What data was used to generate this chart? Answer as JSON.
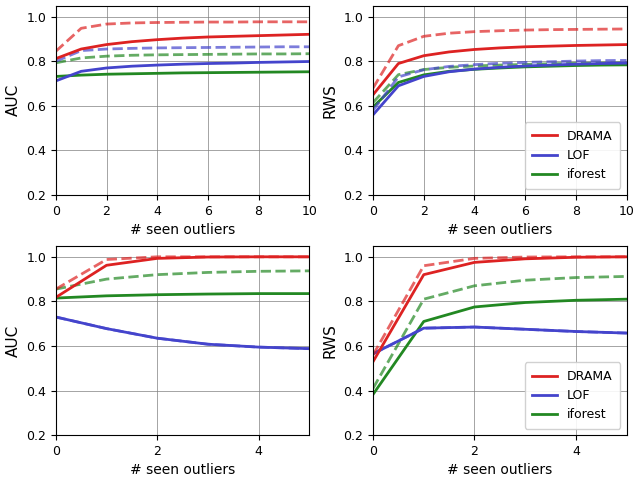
{
  "colors": {
    "drama": "#dd2222",
    "lof": "#4444cc",
    "iforest": "#228822"
  },
  "top_left": {
    "ylabel": "AUC",
    "xlabel": "# seen outliers",
    "xlim": [
      0,
      10
    ],
    "ylim": [
      0.2,
      1.05
    ],
    "yticks": [
      0.2,
      0.4,
      0.6,
      0.8,
      1.0
    ],
    "xticks": [
      0,
      2,
      4,
      6,
      8,
      10
    ],
    "drama_solid": [
      0.812,
      0.855,
      0.875,
      0.888,
      0.897,
      0.904,
      0.909,
      0.912,
      0.915,
      0.918,
      0.921
    ],
    "drama_dashed": [
      0.845,
      0.948,
      0.967,
      0.972,
      0.974,
      0.975,
      0.976,
      0.976,
      0.977,
      0.977,
      0.977
    ],
    "lof_solid": [
      0.712,
      0.755,
      0.77,
      0.778,
      0.783,
      0.787,
      0.79,
      0.792,
      0.795,
      0.797,
      0.799
    ],
    "lof_dashed": [
      0.8,
      0.848,
      0.855,
      0.858,
      0.86,
      0.861,
      0.862,
      0.863,
      0.864,
      0.865,
      0.865
    ],
    "iforest_solid": [
      0.732,
      0.738,
      0.742,
      0.744,
      0.746,
      0.748,
      0.749,
      0.75,
      0.751,
      0.752,
      0.753
    ],
    "iforest_dashed": [
      0.793,
      0.815,
      0.823,
      0.827,
      0.829,
      0.83,
      0.831,
      0.832,
      0.833,
      0.833,
      0.834
    ]
  },
  "top_right": {
    "ylabel": "RWS",
    "xlabel": "# seen outliers",
    "xlim": [
      0,
      10
    ],
    "ylim": [
      0.2,
      1.05
    ],
    "yticks": [
      0.2,
      0.4,
      0.6,
      0.8,
      1.0
    ],
    "xticks": [
      0,
      2,
      4,
      6,
      8,
      10
    ],
    "drama_solid": [
      0.65,
      0.79,
      0.825,
      0.842,
      0.853,
      0.86,
      0.865,
      0.868,
      0.871,
      0.873,
      0.875
    ],
    "drama_dashed": [
      0.68,
      0.87,
      0.912,
      0.926,
      0.933,
      0.937,
      0.94,
      0.942,
      0.943,
      0.944,
      0.945
    ],
    "lof_solid": [
      0.56,
      0.69,
      0.732,
      0.753,
      0.765,
      0.773,
      0.779,
      0.783,
      0.787,
      0.79,
      0.792
    ],
    "lof_dashed": [
      0.58,
      0.73,
      0.762,
      0.777,
      0.785,
      0.791,
      0.795,
      0.798,
      0.801,
      0.803,
      0.804
    ],
    "iforest_solid": [
      0.595,
      0.705,
      0.739,
      0.755,
      0.764,
      0.77,
      0.775,
      0.778,
      0.781,
      0.783,
      0.784
    ],
    "iforest_dashed": [
      0.615,
      0.74,
      0.763,
      0.773,
      0.779,
      0.783,
      0.786,
      0.789,
      0.791,
      0.792,
      0.793
    ]
  },
  "bottom_left": {
    "ylabel": "AUC",
    "xlabel": "# seen outliers",
    "xlim": [
      0,
      5
    ],
    "ylim": [
      0.2,
      1.05
    ],
    "yticks": [
      0.2,
      0.4,
      0.6,
      0.8,
      1.0
    ],
    "xticks": [
      0,
      2,
      4
    ],
    "drama_solid": [
      0.818,
      0.962,
      0.993,
      0.999,
      1.0,
      1.0
    ],
    "drama_dashed": [
      0.855,
      0.988,
      1.0,
      1.0,
      1.0,
      1.0
    ],
    "lof_solid": [
      0.73,
      0.678,
      0.635,
      0.608,
      0.595,
      0.588
    ],
    "lof_dashed": [
      0.73,
      0.678,
      0.635,
      0.608,
      0.595,
      0.588
    ],
    "iforest_solid": [
      0.815,
      0.825,
      0.83,
      0.833,
      0.835,
      0.835
    ],
    "iforest_dashed": [
      0.855,
      0.9,
      0.92,
      0.93,
      0.935,
      0.937
    ]
  },
  "bottom_right": {
    "ylabel": "RWS",
    "xlabel": "# seen outliers",
    "xlim": [
      0,
      5
    ],
    "ylim": [
      0.2,
      1.05
    ],
    "yticks": [
      0.2,
      0.4,
      0.6,
      0.8,
      1.0
    ],
    "xticks": [
      0,
      2,
      4
    ],
    "drama_solid": [
      0.53,
      0.92,
      0.975,
      0.991,
      0.998,
      1.0
    ],
    "drama_dashed": [
      0.56,
      0.96,
      0.993,
      0.999,
      1.0,
      1.0
    ],
    "lof_solid": [
      0.565,
      0.68,
      0.685,
      0.675,
      0.665,
      0.658
    ],
    "lof_dashed": [
      0.565,
      0.68,
      0.685,
      0.675,
      0.665,
      0.658
    ],
    "iforest_solid": [
      0.383,
      0.71,
      0.775,
      0.795,
      0.805,
      0.81
    ],
    "iforest_dashed": [
      0.41,
      0.81,
      0.87,
      0.895,
      0.907,
      0.912
    ]
  },
  "legend_entries": [
    "DRAMA",
    "LOF",
    "iforest"
  ]
}
